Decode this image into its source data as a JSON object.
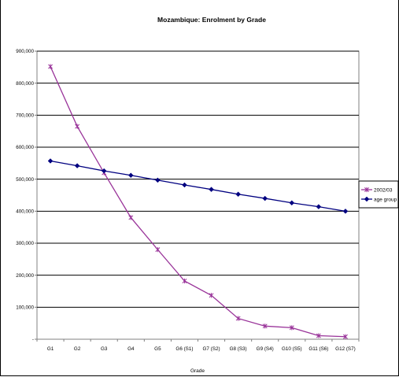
{
  "chart_data": {
    "type": "line",
    "title": "Mozambique: Enrolment by Grade",
    "xlabel": "Grade",
    "ylabel": "",
    "categories": [
      "G1",
      "G2",
      "G3",
      "G4",
      "G5",
      "G6 (S1)",
      "G7 (S2)",
      "G8 (S3)",
      "G9 (S4)",
      "G10 (S5)",
      "G11 (S6)",
      "G12 (S7)"
    ],
    "ylim": [
      0,
      900000
    ],
    "y_ticks": [
      {
        "value": 0,
        "label": "-"
      },
      {
        "value": 100000,
        "label": "100,000"
      },
      {
        "value": 200000,
        "label": "200,000"
      },
      {
        "value": 300000,
        "label": "300,000"
      },
      {
        "value": 400000,
        "label": "400,000"
      },
      {
        "value": 500000,
        "label": "500,000"
      },
      {
        "value": 600000,
        "label": "600,000"
      },
      {
        "value": 700000,
        "label": "700,000"
      },
      {
        "value": 800000,
        "label": "800,000"
      },
      {
        "value": 900000,
        "label": "900,000"
      }
    ],
    "grid": true,
    "legend_position": "right",
    "series": [
      {
        "name": "2002/03",
        "color": "#993399",
        "marker": "asterisk",
        "values": [
          852000,
          665000,
          520000,
          380000,
          280000,
          182000,
          137000,
          65000,
          41000,
          36000,
          11000,
          8000
        ]
      },
      {
        "name": "age group",
        "color": "#000080",
        "marker": "diamond",
        "values": [
          557000,
          542000,
          526000,
          512000,
          497000,
          482000,
          468000,
          453000,
          440000,
          426000,
          414000,
          400000
        ]
      }
    ]
  }
}
